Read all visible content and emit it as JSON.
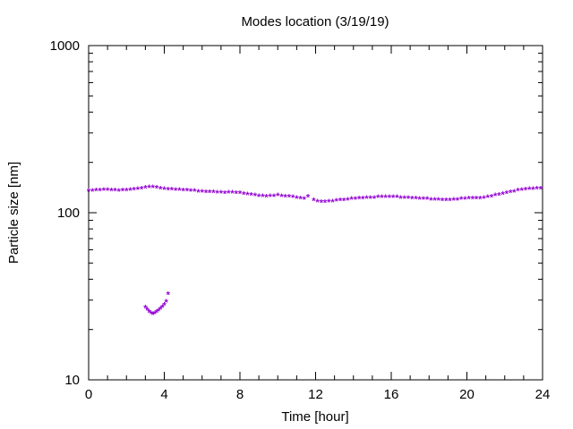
{
  "chart_data": {
    "type": "scatter",
    "title": "Modes location (3/19/19)",
    "xlabel": "Time [hour]",
    "ylabel": "Particle size [nm]",
    "xlim": [
      0,
      24
    ],
    "ylim": [
      10,
      1000
    ],
    "yscale": "log",
    "grid": false,
    "legend": "none",
    "marker": "*",
    "color": "#9400d3",
    "x_ticks": [
      "0",
      "4",
      "8",
      "12",
      "16",
      "20",
      "24"
    ],
    "y_ticks": [
      "10",
      "100",
      "1000"
    ],
    "series": [
      {
        "x": [
          0.0,
          0.2,
          0.4,
          0.6,
          0.8,
          1.0,
          1.2,
          1.4,
          1.6,
          1.8,
          2.0,
          2.2,
          2.4,
          2.6,
          2.8,
          3.0,
          3.2,
          3.4,
          3.6,
          3.8,
          4.0,
          4.2,
          4.4,
          4.6,
          4.8,
          5.0,
          5.2,
          5.4,
          5.6,
          5.8,
          6.0,
          6.2,
          6.4,
          6.6,
          6.8,
          7.0,
          7.2,
          7.4,
          7.6,
          7.8,
          8.0,
          8.2,
          8.4,
          8.6,
          8.8,
          9.0,
          9.2,
          9.4,
          9.6,
          9.8,
          10.0,
          10.2,
          10.4,
          10.6,
          10.8,
          11.0,
          11.2,
          11.4,
          11.6,
          11.9,
          12.1,
          12.3,
          12.5,
          12.7,
          12.9,
          13.1,
          13.3,
          13.5,
          13.7,
          13.9,
          14.1,
          14.3,
          14.5,
          14.7,
          14.9,
          15.1,
          15.3,
          15.5,
          15.7,
          15.9,
          16.1,
          16.3,
          16.5,
          16.7,
          16.9,
          17.1,
          17.3,
          17.5,
          17.7,
          17.9,
          18.1,
          18.3,
          18.5,
          18.7,
          18.9,
          19.1,
          19.3,
          19.5,
          19.7,
          19.9,
          20.1,
          20.3,
          20.5,
          20.7,
          20.9,
          21.1,
          21.3,
          21.5,
          21.7,
          21.9,
          22.1,
          22.3,
          22.5,
          22.7,
          22.9,
          23.1,
          23.3,
          23.5,
          23.7,
          23.9
        ],
        "y": [
          134,
          134,
          135,
          135,
          136,
          136,
          135,
          135,
          134,
          135,
          135,
          136,
          137,
          138,
          139,
          140,
          141,
          141,
          140,
          139,
          138,
          137,
          137,
          136,
          136,
          135,
          135,
          134,
          134,
          133,
          133,
          132,
          132,
          132,
          131,
          131,
          130,
          131,
          131,
          130,
          130,
          129,
          128,
          127,
          126,
          125,
          125,
          124,
          125,
          125,
          126,
          125,
          124,
          124,
          123,
          122,
          121,
          120,
          124,
          118,
          116,
          115,
          115,
          116,
          116,
          117,
          118,
          118,
          119,
          120,
          120,
          121,
          121,
          122,
          122,
          122,
          123,
          123,
          123,
          123,
          123,
          123,
          122,
          122,
          122,
          121,
          121,
          120,
          120,
          120,
          119,
          119,
          119,
          118,
          118,
          118,
          119,
          119,
          120,
          120,
          121,
          121,
          121,
          121,
          122,
          123,
          124,
          126,
          127,
          129,
          130,
          132,
          133,
          135,
          136,
          137,
          138,
          138,
          139,
          139
        ]
      },
      {
        "x": [
          3.0,
          3.1,
          3.2,
          3.3,
          3.4,
          3.5,
          3.6,
          3.7,
          3.8,
          3.9,
          4.0,
          4.1,
          4.2
        ],
        "y": [
          27.0,
          26.2,
          25.4,
          24.9,
          24.6,
          24.8,
          25.3,
          25.8,
          26.4,
          27.1,
          28.0,
          29.2,
          32.5
        ]
      }
    ]
  }
}
